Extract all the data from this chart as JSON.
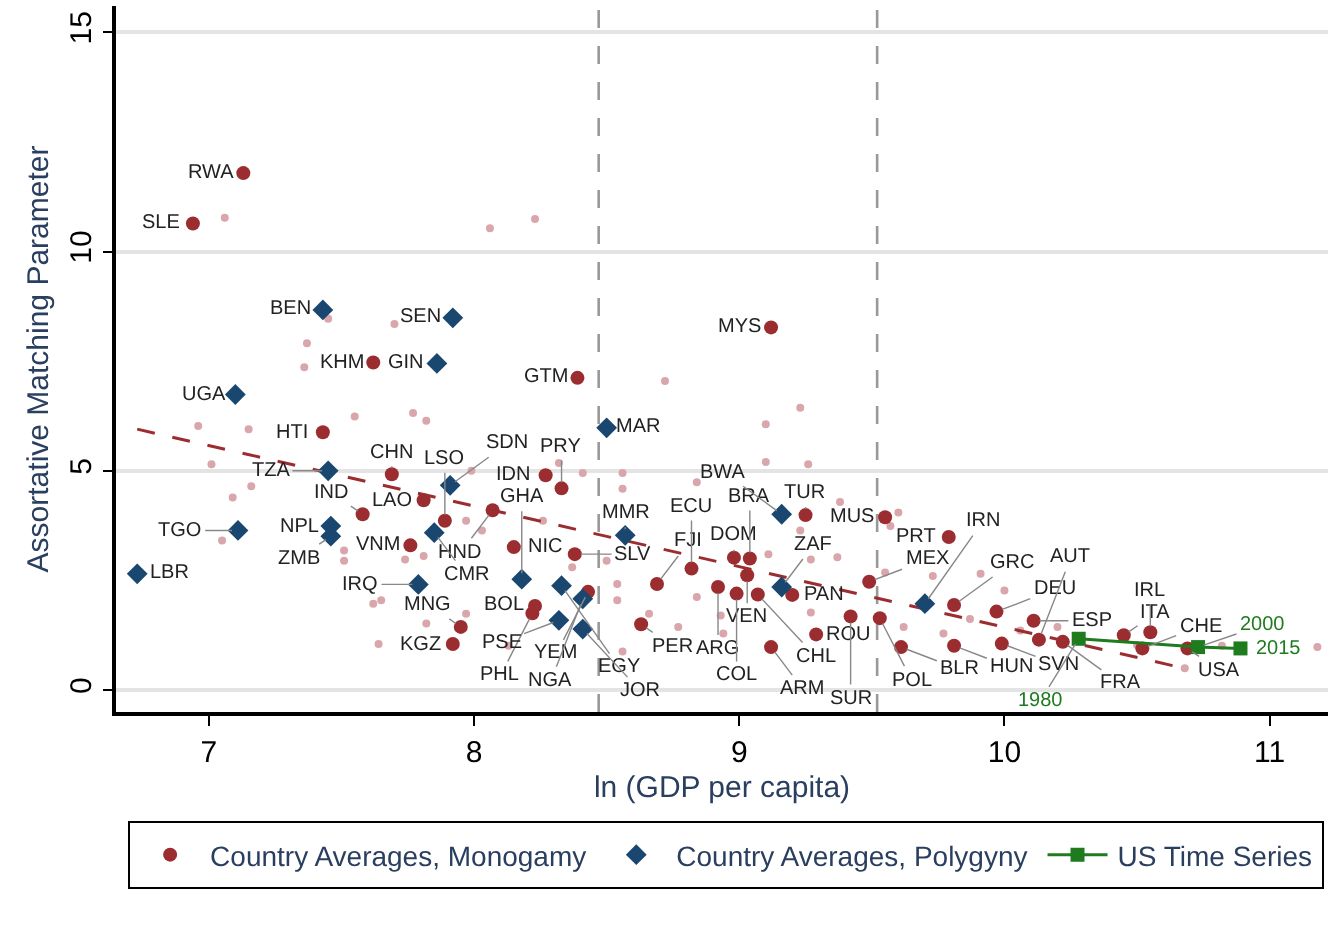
{
  "chart_data": {
    "type": "scatter",
    "xlabel": "ln (GDP per capita)",
    "ylabel": "Assortative Matching Parameter",
    "xlim": [
      6.65,
      11.22
    ],
    "ylim": [
      -0.5,
      15.6
    ],
    "xticks": [
      7,
      8,
      9,
      10,
      11
    ],
    "yticks": [
      0,
      5,
      10,
      15
    ],
    "grid": "y",
    "legend": "bottom",
    "series": [
      {
        "color": "#d9a6ab",
        "marker": "circle",
        "x": [
          7.06,
          8.06,
          8.23,
          7.45,
          7.7,
          7.37,
          7.36,
          8.72,
          6.96,
          7.15,
          7.01,
          7.16,
          7.09,
          7.55,
          7.77,
          7.82,
          7.05,
          7.51,
          7.51,
          7.74,
          7.81,
          7.99,
          8.32,
          8.41,
          8.56,
          8.56,
          7.97,
          8.03,
          8.26,
          8.37,
          8.5,
          8.54,
          8.54,
          8.66,
          8.56,
          7.64,
          8.13,
          7.82,
          7.65,
          7.62,
          7.97,
          9.23,
          9.1,
          9.1,
          9.26,
          8.84,
          9.38,
          9.23,
          9.6,
          9.57,
          9.11,
          9.37,
          9.27,
          9.55,
          9.73,
          9.91,
          10.0,
          8.77,
          8.94,
          8.93,
          9.27,
          9.62,
          9.77,
          9.87,
          10.06,
          10.2,
          10.5,
          10.82,
          11.18,
          10.68,
          8.84
        ],
        "values": [
          10.77,
          10.53,
          10.74,
          8.47,
          8.35,
          7.91,
          7.36,
          7.05,
          6.02,
          5.95,
          5.15,
          4.65,
          4.39,
          6.24,
          6.32,
          6.14,
          3.41,
          3.18,
          2.95,
          2.98,
          3.06,
          5.0,
          5.18,
          4.95,
          4.95,
          4.59,
          3.86,
          3.64,
          3.86,
          2.8,
          2.95,
          2.42,
          2.05,
          1.74,
          0.88,
          1.05,
          1.01,
          1.52,
          2.05,
          1.97,
          1.74,
          6.44,
          6.06,
          5.2,
          5.15,
          4.74,
          4.29,
          3.64,
          4.05,
          3.74,
          3.1,
          3.03,
          2.98,
          2.68,
          2.6,
          2.65,
          2.27,
          1.44,
          1.29,
          1.7,
          1.77,
          1.44,
          1.29,
          1.62,
          1.36,
          1.44,
          1.03,
          1.01,
          0.98,
          0.5,
          2.12
        ]
      },
      {
        "type": "line",
        "color": "#9b2d30",
        "marker": "none",
        "line_style": "dashed",
        "x": [
          6.73,
          10.64
        ],
        "values": [
          5.95,
          0.55
        ]
      },
      {
        "name": "Country Averages, Monogamy",
        "color": "#9b2d30",
        "marker": "circle",
        "x": [
          7.13,
          6.94,
          7.62,
          8.39,
          9.12,
          7.43,
          7.69,
          8.27,
          8.33,
          7.81,
          8.07,
          7.58,
          7.76,
          8.15,
          8.38,
          8.43,
          8.23,
          8.22,
          8.63,
          7.95,
          7.92,
          8.69,
          8.82,
          9.25,
          9.55,
          9.79,
          8.98,
          9.04,
          9.03,
          8.92,
          8.99,
          9.07,
          9.2,
          9.49,
          9.12,
          9.29,
          9.42,
          9.53,
          9.61,
          9.81,
          9.99,
          9.81,
          9.97,
          10.11,
          10.13,
          10.22,
          10.45,
          10.55,
          10.52,
          10.69,
          7.89
        ],
        "values": [
          11.79,
          10.64,
          7.47,
          7.12,
          8.27,
          5.88,
          4.92,
          4.9,
          4.6,
          4.33,
          4.1,
          4.01,
          3.3,
          3.26,
          3.1,
          2.24,
          1.92,
          1.75,
          1.5,
          1.44,
          1.05,
          2.42,
          2.77,
          3.99,
          3.94,
          3.49,
          3.02,
          3.0,
          2.62,
          2.35,
          2.2,
          2.18,
          2.17,
          2.47,
          0.98,
          1.27,
          1.68,
          1.64,
          0.98,
          1.01,
          1.06,
          1.94,
          1.79,
          1.58,
          1.15,
          1.1,
          1.25,
          1.32,
          0.95,
          0.95,
          3.86
        ]
      },
      {
        "name": "Country Averages, Polygyny",
        "color": "#1a476f",
        "marker": "diamond",
        "x": [
          7.43,
          7.92,
          7.86,
          7.1,
          8.5,
          7.45,
          7.91,
          7.85,
          7.46,
          7.46,
          7.11,
          6.73,
          8.57,
          7.79,
          8.18,
          8.33,
          8.41,
          8.32,
          8.41,
          9.16,
          9.16,
          9.7
        ],
        "values": [
          8.67,
          8.49,
          7.45,
          6.74,
          5.98,
          5.0,
          4.67,
          3.59,
          3.74,
          3.51,
          3.64,
          2.65,
          3.53,
          2.41,
          2.53,
          2.38,
          2.08,
          1.59,
          1.39,
          4.01,
          2.35,
          1.97
        ]
      },
      {
        "type": "line",
        "name": "US Time Series",
        "color": "#1e7b1e",
        "marker": "square",
        "line_style": "solid",
        "x": [
          10.28,
          10.73,
          10.89
        ],
        "values": [
          1.17,
          0.98,
          0.95
        ]
      }
    ],
    "ref_lines": [
      {
        "axis": "x",
        "value": 8.47,
        "color": "#999999",
        "line_style": "dashed"
      },
      {
        "axis": "x",
        "value": 9.52,
        "color": "#999999",
        "line_style": "dashed"
      }
    ],
    "annotations": [
      {
        "text": "RWA",
        "x": 7.13,
        "y": 11.79
      },
      {
        "text": "SLE",
        "x": 6.94,
        "y": 10.64
      },
      {
        "text": "KHM",
        "x": 7.62,
        "y": 7.47
      },
      {
        "text": "GTM",
        "x": 8.39,
        "y": 7.12
      },
      {
        "text": "MYS",
        "x": 9.12,
        "y": 8.27
      },
      {
        "text": "HTI",
        "x": 7.43,
        "y": 5.88
      },
      {
        "text": "CHN",
        "x": 7.69,
        "y": 4.92
      },
      {
        "text": "IDN",
        "x": 8.27,
        "y": 4.9
      },
      {
        "text": "PRY",
        "x": 8.33,
        "y": 4.6
      },
      {
        "text": "LAO",
        "x": 7.81,
        "y": 4.33
      },
      {
        "text": "HND",
        "x": 8.07,
        "y": 4.1
      },
      {
        "text": "IND",
        "x": 7.58,
        "y": 4.01
      },
      {
        "text": "VNM",
        "x": 7.76,
        "y": 3.3
      },
      {
        "text": "NIC",
        "x": 8.15,
        "y": 3.26
      },
      {
        "text": "SLV",
        "x": 8.38,
        "y": 3.1
      },
      {
        "text": "YEM",
        "x": 8.43,
        "y": 2.24
      },
      {
        "text": "BOL",
        "x": 8.23,
        "y": 1.92
      },
      {
        "text": "PHL",
        "x": 8.22,
        "y": 1.75
      },
      {
        "text": "PER",
        "x": 8.63,
        "y": 1.5
      },
      {
        "text": "MNG",
        "x": 7.95,
        "y": 1.44
      },
      {
        "text": "KGZ",
        "x": 7.92,
        "y": 1.05
      },
      {
        "text": "FJI",
        "x": 8.69,
        "y": 2.42
      },
      {
        "text": "ECU",
        "x": 8.82,
        "y": 2.77
      },
      {
        "text": "TUR",
        "x": 9.25,
        "y": 3.99
      },
      {
        "text": "MUS",
        "x": 9.55,
        "y": 3.94
      },
      {
        "text": "PRT",
        "x": 9.79,
        "y": 3.49
      },
      {
        "text": "DOM",
        "x": 8.98,
        "y": 3.02
      },
      {
        "text": "BRA",
        "x": 9.04,
        "y": 3.0
      },
      {
        "text": "VEN",
        "x": 9.03,
        "y": 2.62
      },
      {
        "text": "ARG",
        "x": 8.92,
        "y": 2.35
      },
      {
        "text": "COL",
        "x": 8.99,
        "y": 2.2
      },
      {
        "text": "CHL",
        "x": 9.07,
        "y": 2.18
      },
      {
        "text": "PAN",
        "x": 9.2,
        "y": 2.17
      },
      {
        "text": "MEX",
        "x": 9.49,
        "y": 2.47
      },
      {
        "text": "ARM",
        "x": 9.12,
        "y": 0.98
      },
      {
        "text": "ROU",
        "x": 9.29,
        "y": 1.27
      },
      {
        "text": "SUR",
        "x": 9.42,
        "y": 1.68
      },
      {
        "text": "POL",
        "x": 9.53,
        "y": 1.64
      },
      {
        "text": "BLR",
        "x": 9.61,
        "y": 0.98
      },
      {
        "text": "HUN",
        "x": 9.81,
        "y": 1.01
      },
      {
        "text": "SVN",
        "x": 9.99,
        "y": 1.06
      },
      {
        "text": "GRC",
        "x": 9.81,
        "y": 1.94
      },
      {
        "text": "DEU",
        "x": 9.97,
        "y": 1.79
      },
      {
        "text": "ESP",
        "x": 10.11,
        "y": 1.58
      },
      {
        "text": "AUT",
        "x": 10.13,
        "y": 1.15
      },
      {
        "text": "FRA",
        "x": 10.22,
        "y": 1.1
      },
      {
        "text": "ITA",
        "x": 10.45,
        "y": 1.25
      },
      {
        "text": "IRL",
        "x": 10.55,
        "y": 1.32
      },
      {
        "text": "CHE",
        "x": 10.52,
        "y": 0.95
      },
      {
        "text": "USA",
        "x": 10.69,
        "y": 0.95
      },
      {
        "text": "LSO",
        "x": 7.89,
        "y": 3.86
      },
      {
        "text": "BEN",
        "x": 7.43,
        "y": 8.67
      },
      {
        "text": "SEN",
        "x": 7.92,
        "y": 8.49
      },
      {
        "text": "GIN",
        "x": 7.86,
        "y": 7.45
      },
      {
        "text": "UGA",
        "x": 7.1,
        "y": 6.74
      },
      {
        "text": "MAR",
        "x": 8.5,
        "y": 5.98
      },
      {
        "text": "TZA",
        "x": 7.45,
        "y": 5.0
      },
      {
        "text": "SDN",
        "x": 7.91,
        "y": 4.67
      },
      {
        "text": "CMR",
        "x": 7.85,
        "y": 3.59
      },
      {
        "text": "NPL",
        "x": 7.46,
        "y": 3.74
      },
      {
        "text": "ZMB",
        "x": 7.46,
        "y": 3.51
      },
      {
        "text": "TGO",
        "x": 7.11,
        "y": 3.64
      },
      {
        "text": "LBR",
        "x": 6.73,
        "y": 2.65
      },
      {
        "text": "MMR",
        "x": 8.57,
        "y": 3.53
      },
      {
        "text": "IRQ",
        "x": 7.79,
        "y": 2.41
      },
      {
        "text": "GHA",
        "x": 8.18,
        "y": 2.53
      },
      {
        "text": "EGY",
        "x": 8.33,
        "y": 2.38
      },
      {
        "text": "NGA",
        "x": 8.41,
        "y": 2.08
      },
      {
        "text": "PSE",
        "x": 8.32,
        "y": 1.59
      },
      {
        "text": "JOR",
        "x": 8.41,
        "y": 1.39
      },
      {
        "text": "BWA",
        "x": 9.16,
        "y": 4.01
      },
      {
        "text": "ZAF",
        "x": 9.16,
        "y": 2.35
      },
      {
        "text": "IRN",
        "x": 9.7,
        "y": 1.97
      },
      {
        "text": "1980",
        "x": 10.28,
        "y": 1.17
      },
      {
        "text": "2000",
        "x": 10.73,
        "y": 0.98
      },
      {
        "text": "2015",
        "x": 10.89,
        "y": 0.95
      }
    ]
  }
}
